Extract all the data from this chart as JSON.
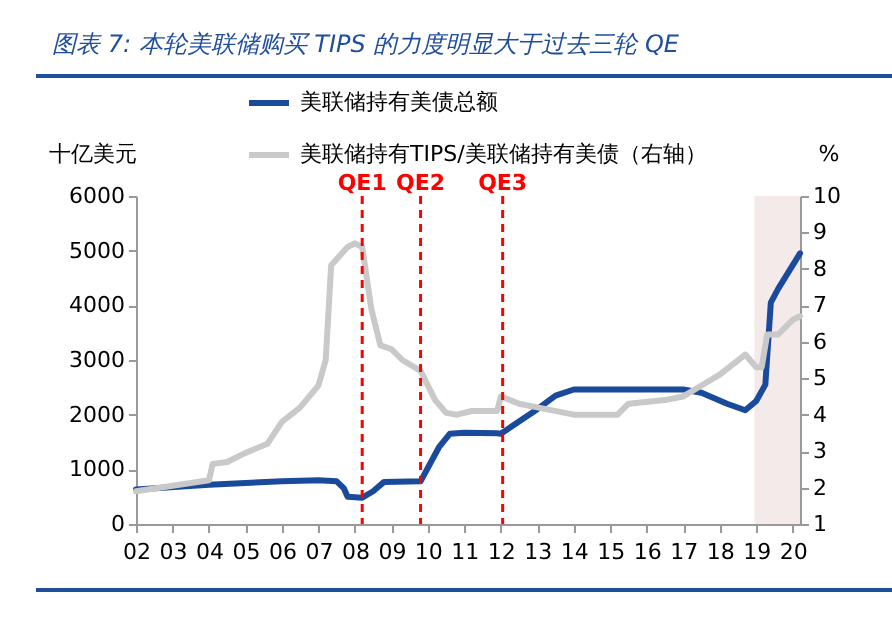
{
  "chart_data": {
    "type": "line",
    "title": "图表 7:  本轮美联储购买 TIPS 的力度明显大于过去三轮 QE",
    "ylabel": "十亿美元",
    "y2label": "%",
    "xlim": [
      2002,
      2020.2
    ],
    "xticks": [
      {
        "value": 2002,
        "label": "02"
      },
      {
        "value": 2003,
        "label": "03"
      },
      {
        "value": 2004,
        "label": "04"
      },
      {
        "value": 2005,
        "label": "05"
      },
      {
        "value": 2006,
        "label": "06"
      },
      {
        "value": 2007,
        "label": "07"
      },
      {
        "value": 2008,
        "label": "08"
      },
      {
        "value": 2009,
        "label": "09"
      },
      {
        "value": 2010,
        "label": "10"
      },
      {
        "value": 2011,
        "label": "11"
      },
      {
        "value": 2012,
        "label": "12"
      },
      {
        "value": 2013,
        "label": "13"
      },
      {
        "value": 2014,
        "label": "14"
      },
      {
        "value": 2015,
        "label": "15"
      },
      {
        "value": 2016,
        "label": "16"
      },
      {
        "value": 2017,
        "label": "17"
      },
      {
        "value": 2018,
        "label": "18"
      },
      {
        "value": 2019,
        "label": "19"
      },
      {
        "value": 2020,
        "label": "20"
      }
    ],
    "ylim": [
      0,
      6000
    ],
    "yticks": [
      0,
      1000,
      2000,
      3000,
      4000,
      5000,
      6000
    ],
    "y2lim": [
      1,
      10
    ],
    "y2ticks": [
      1,
      2,
      3,
      4,
      5,
      6,
      7,
      8,
      9,
      10
    ],
    "legend": "top",
    "series": [
      {
        "name": "美联储持有美债总额",
        "color": "#1a4a9c",
        "x": [
          2002,
          2004,
          2006,
          2007,
          2007.5,
          2007.7,
          2007.8,
          2008.2,
          2008.5,
          2008.8,
          2009.8,
          2010.3,
          2010.6,
          2011,
          2011.9,
          2012,
          2013,
          2013.5,
          2014,
          2017,
          2017.5,
          2018.2,
          2018.7,
          2019,
          2019.25,
          2019.4,
          2019.6,
          2020.2
        ],
        "values": [
          630,
          720,
          780,
          800,
          780,
          650,
          500,
          480,
          600,
          770,
          780,
          1400,
          1650,
          1670,
          1660,
          1650,
          2100,
          2350,
          2460,
          2460,
          2400,
          2200,
          2080,
          2250,
          2550,
          4050,
          4300,
          4950
        ]
      },
      {
        "name": "美联储持有TIPS/美联储持有美债（右轴）",
        "color": "#c9c9c9",
        "axis": "y2",
        "x": [
          2002,
          2003,
          2004,
          2004.1,
          2004.5,
          2005,
          2005.6,
          2006,
          2006.5,
          2007,
          2007.2,
          2007.35,
          2007.8,
          2008,
          2008.2,
          2008.45,
          2008.7,
          2009,
          2009.3,
          2009.8,
          2010.2,
          2010.5,
          2010.8,
          2011.2,
          2011.9,
          2012,
          2012.5,
          2013,
          2014,
          2015.2,
          2015.5,
          2016.5,
          2017,
          2017.5,
          2018,
          2018.7,
          2019,
          2019.15,
          2019.3,
          2019.6,
          2020,
          2020.2
        ],
        "values": [
          1.9,
          2.05,
          2.2,
          2.65,
          2.7,
          2.95,
          3.2,
          3.8,
          4.2,
          4.8,
          5.5,
          8.1,
          8.6,
          8.7,
          8.6,
          6.9,
          5.9,
          5.8,
          5.5,
          5.2,
          4.4,
          4.05,
          4.0,
          4.1,
          4.1,
          4.5,
          4.3,
          4.2,
          4.0,
          4.0,
          4.3,
          4.4,
          4.5,
          4.8,
          5.1,
          5.65,
          5.3,
          5.3,
          6.2,
          6.2,
          6.6,
          6.7
        ]
      }
    ],
    "ref_lines": [
      {
        "axis": "x",
        "value": 2008.2,
        "label": "QE1",
        "color": "#ff0000",
        "line_style": "dashed"
      },
      {
        "axis": "x",
        "value": 2009.8,
        "label": "QE2",
        "color": "#ff0000",
        "line_style": "dashed"
      },
      {
        "axis": "x",
        "value": 2012.05,
        "label": "QE3",
        "color": "#ff0000",
        "line_style": "dashed"
      }
    ],
    "bands": [
      {
        "axis": "x",
        "from": 2018.95,
        "to": 2020.2,
        "color": "#f3e8e8"
      }
    ]
  }
}
